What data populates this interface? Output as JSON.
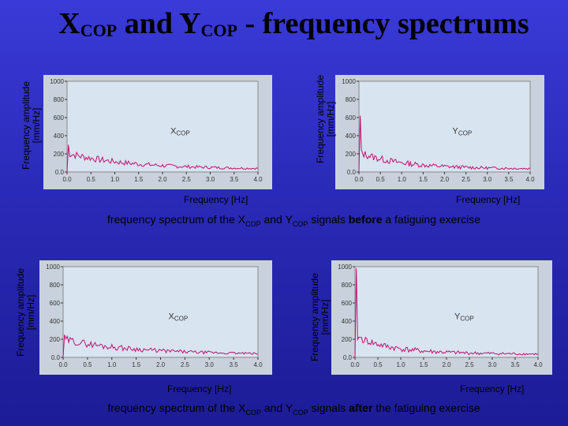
{
  "title": {
    "pre": "X",
    "sub1": "COP",
    "mid": " and Y",
    "sub2": "COP",
    "post": " - frequency spectrums"
  },
  "ylabel_line1": "Frequency amplitude",
  "ylabel_line2": "[mm/Hz]",
  "xlabel": "Frequency [Hz]",
  "caption_before": {
    "t1": "frequency spectrum of the X",
    "s1": "COP",
    "t2": " and Y",
    "s2": "COP",
    "t3": " signals ",
    "bold": "before",
    "t4": " a fatiguing exercise"
  },
  "caption_after": {
    "t1": "frequency spectrum of the X",
    "s1": "COP",
    "t2": " and Y",
    "s2": "COP",
    "t3": " signals ",
    "bold": "after",
    "t4": " the fatiguing exercise"
  },
  "colors": {
    "background": "#2a2ab8",
    "plot_area": "#d8e4ef",
    "signal": "#c01070"
  },
  "chart_data": [
    {
      "type": "line",
      "series": [
        {
          "name": "XCOP",
          "values": []
        }
      ],
      "label": "XCOP",
      "x_ticks": [
        "0.0",
        "0.5",
        "1.0",
        "1.5",
        "2.0",
        "2.5",
        "3.0",
        "3.5",
        "4.0"
      ],
      "xlim": [
        0.0,
        4.0
      ],
      "y_ticks": [
        "0.0",
        "200",
        "400",
        "600",
        "800",
        "1000"
      ],
      "ylim": [
        0,
        1000
      ]
    },
    {
      "type": "line",
      "series": [
        {
          "name": "YCOP",
          "values": []
        }
      ],
      "label": "YCOP",
      "x_ticks": [
        "0.0",
        "0.5",
        "1.0",
        "1.5",
        "2.0",
        "2.5",
        "3.0",
        "3.5",
        "4.0"
      ],
      "xlim": [
        0.0,
        4.0
      ],
      "y_ticks": [
        "0.0",
        "200",
        "400",
        "600",
        "800",
        "1000"
      ],
      "ylim": [
        0,
        1000
      ]
    },
    {
      "type": "line",
      "series": [
        {
          "name": "XCOP",
          "values": []
        }
      ],
      "label": "XCOP",
      "x_ticks": [
        "0.0",
        "0.5",
        "1.0",
        "1.5",
        "2.0",
        "2.5",
        "3.0",
        "3.5",
        "4.0"
      ],
      "xlim": [
        0.0,
        4.0
      ],
      "y_ticks": [
        "0.0",
        "200",
        "400",
        "600",
        "800",
        "1000"
      ],
      "ylim": [
        0,
        1000
      ]
    },
    {
      "type": "line",
      "series": [
        {
          "name": "YCOP",
          "values": []
        }
      ],
      "label": "YCOP",
      "x_ticks": [
        "0.0",
        "0.5",
        "1.0",
        "1.5",
        "2.0",
        "2.5",
        "3.0",
        "3.5",
        "4.0"
      ],
      "xlim": [
        0.0,
        4.0
      ],
      "y_ticks": [
        "0.0",
        "200",
        "400",
        "600",
        "800",
        "1000"
      ],
      "ylim": [
        0,
        1000
      ]
    }
  ]
}
